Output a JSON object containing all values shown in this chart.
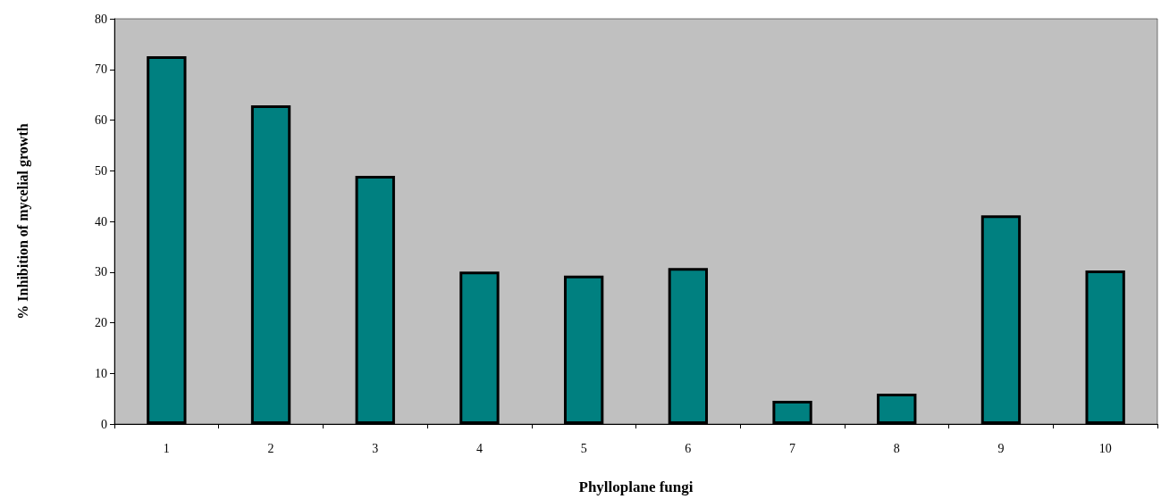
{
  "chart_data": {
    "type": "bar",
    "xlabel": "Phylloplane fungi",
    "ylabel": "% Inhibition of mycelial growth",
    "categories": [
      "1",
      "2",
      "3",
      "4",
      "5",
      "6",
      "7",
      "8",
      "9",
      "10"
    ],
    "values": [
      72.6,
      62.9,
      49.0,
      30.1,
      29.3,
      30.8,
      4.6,
      6.0,
      41.2,
      30.3
    ],
    "color": "#008080",
    "ylim": [
      0,
      80
    ],
    "yticks": [
      0,
      10,
      20,
      30,
      40,
      50,
      60,
      70,
      80
    ],
    "grid": false
  }
}
